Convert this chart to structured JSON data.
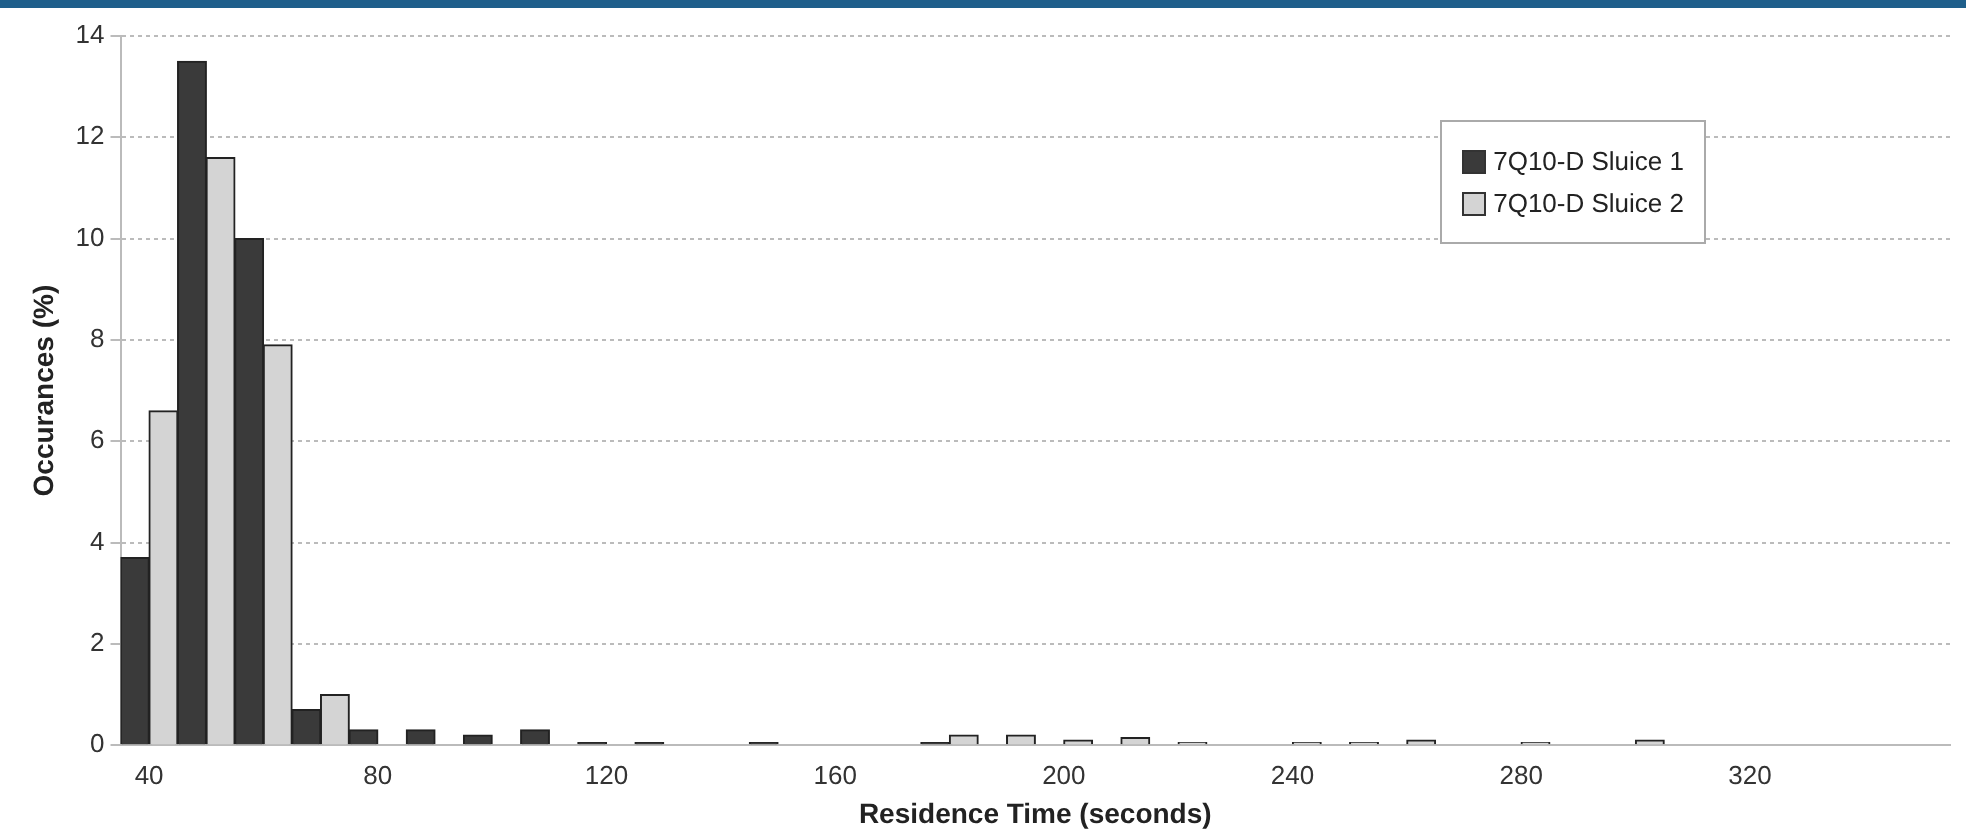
{
  "chart_data": {
    "type": "bar",
    "xlabel": "Residence Time (seconds)",
    "ylabel": "Occurances (%)",
    "x": [
      40,
      50,
      60,
      70,
      80,
      90,
      100,
      110,
      120,
      130,
      140,
      150,
      160,
      170,
      180,
      190,
      200,
      210,
      220,
      230,
      240,
      250,
      260,
      270,
      280,
      290,
      300
    ],
    "series": [
      {
        "name": "7Q10-D Sluice 1",
        "color": "#3a3a3a",
        "values": [
          3.7,
          13.5,
          10.0,
          0.7,
          0.3,
          0.3,
          0.2,
          0.3,
          0.05,
          0.05,
          0,
          0.05,
          0,
          0,
          0.05,
          0,
          0,
          0,
          0,
          0,
          0,
          0,
          0,
          0,
          0,
          0,
          0
        ]
      },
      {
        "name": "7Q10-D Sluice 2",
        "color": "#d4d4d4",
        "values": [
          6.6,
          11.6,
          7.9,
          1.0,
          0,
          0,
          0,
          0,
          0,
          0,
          0,
          0,
          0,
          0,
          0.2,
          0.2,
          0.1,
          0.15,
          0.05,
          0,
          0.05,
          0.05,
          0.1,
          0,
          0.05,
          0,
          0.1
        ]
      }
    ],
    "xlim": [
      35,
      355
    ],
    "xticks": [
      40,
      80,
      120,
      160,
      200,
      240,
      280,
      320
    ],
    "ylim": [
      0,
      14
    ],
    "yticks": [
      0,
      2,
      4,
      6,
      8,
      10,
      12,
      14
    ],
    "grid": "y",
    "legend": "top right"
  }
}
